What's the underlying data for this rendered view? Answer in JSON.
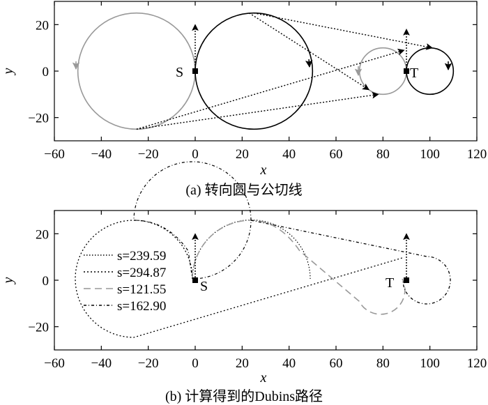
{
  "chart_data": [
    {
      "type": "line",
      "caption": "(a) 转向圆与公切线",
      "xlabel": "x",
      "ylabel": "y",
      "xlim": [
        -60,
        120
      ],
      "ylim": [
        -30,
        30
      ],
      "xticks": [
        -60,
        -40,
        -20,
        0,
        20,
        40,
        60,
        80,
        100,
        120
      ],
      "yticks": [
        -20,
        0,
        20
      ],
      "tick_labels": {
        "x": [
          "−60",
          "−40",
          "−20",
          "0",
          "20",
          "40",
          "60",
          "80",
          "100",
          "120"
        ],
        "y": [
          "−20",
          "0",
          "20"
        ]
      },
      "points": [
        {
          "label": "S",
          "x": 0,
          "y": 0
        },
        {
          "label": "T",
          "x": 90,
          "y": 0
        }
      ],
      "circles": [
        {
          "cx": -25,
          "cy": 0,
          "r": 25,
          "color": "#999999"
        },
        {
          "cx": 25,
          "cy": 0,
          "r": 25,
          "color": "#000000"
        },
        {
          "cx": 80,
          "cy": 0,
          "r": 10,
          "color": "#999999"
        },
        {
          "cx": 100,
          "cy": 0,
          "r": 10,
          "color": "#000000"
        }
      ],
      "tangents": [
        {
          "from": [
            25,
            25
          ],
          "to": [
            101,
            10
          ]
        },
        {
          "from": [
            23,
            25
          ],
          "to": [
            74,
            -8
          ]
        },
        {
          "from": [
            -25,
            -25
          ],
          "to": [
            89,
            9
          ]
        },
        {
          "from": [
            -25,
            -25
          ],
          "to": [
            78,
            -10
          ]
        }
      ],
      "headings": [
        {
          "x": 0,
          "y0": 0,
          "y1": 20
        },
        {
          "x": 90,
          "y0": 0,
          "y1": 18
        }
      ],
      "grid": false
    },
    {
      "type": "line",
      "caption": "(b) 计算得到的Dubins路径",
      "xlabel": "x",
      "ylabel": "y",
      "xlim": [
        -60,
        120
      ],
      "ylim": [
        -30,
        30
      ],
      "xticks": [
        -60,
        -40,
        -20,
        0,
        20,
        40,
        60,
        80,
        100,
        120
      ],
      "yticks": [
        -20,
        0,
        20
      ],
      "tick_labels": {
        "x": [
          "−60",
          "−40",
          "−20",
          "0",
          "20",
          "40",
          "60",
          "80",
          "100",
          "120"
        ],
        "y": [
          "−20",
          "0",
          "20"
        ]
      },
      "points": [
        {
          "label": "S",
          "x": 0,
          "y": 0
        },
        {
          "label": "T",
          "x": 90,
          "y": 0
        }
      ],
      "legend_position": "left",
      "series": [
        {
          "name": "s=239.59",
          "style": "dotted-fine",
          "color": "#000000"
        },
        {
          "name": "s=294.87",
          "style": "dotted",
          "color": "#000000"
        },
        {
          "name": "s=121.55",
          "style": "dashed",
          "color": "#999999"
        },
        {
          "name": "s=162.90",
          "style": "dashdot",
          "color": "#000000"
        }
      ],
      "headings": [
        {
          "x": 0,
          "y0": 0,
          "y1": 20
        },
        {
          "x": 90,
          "y0": 0,
          "y1": 20
        }
      ],
      "grid": false
    }
  ]
}
